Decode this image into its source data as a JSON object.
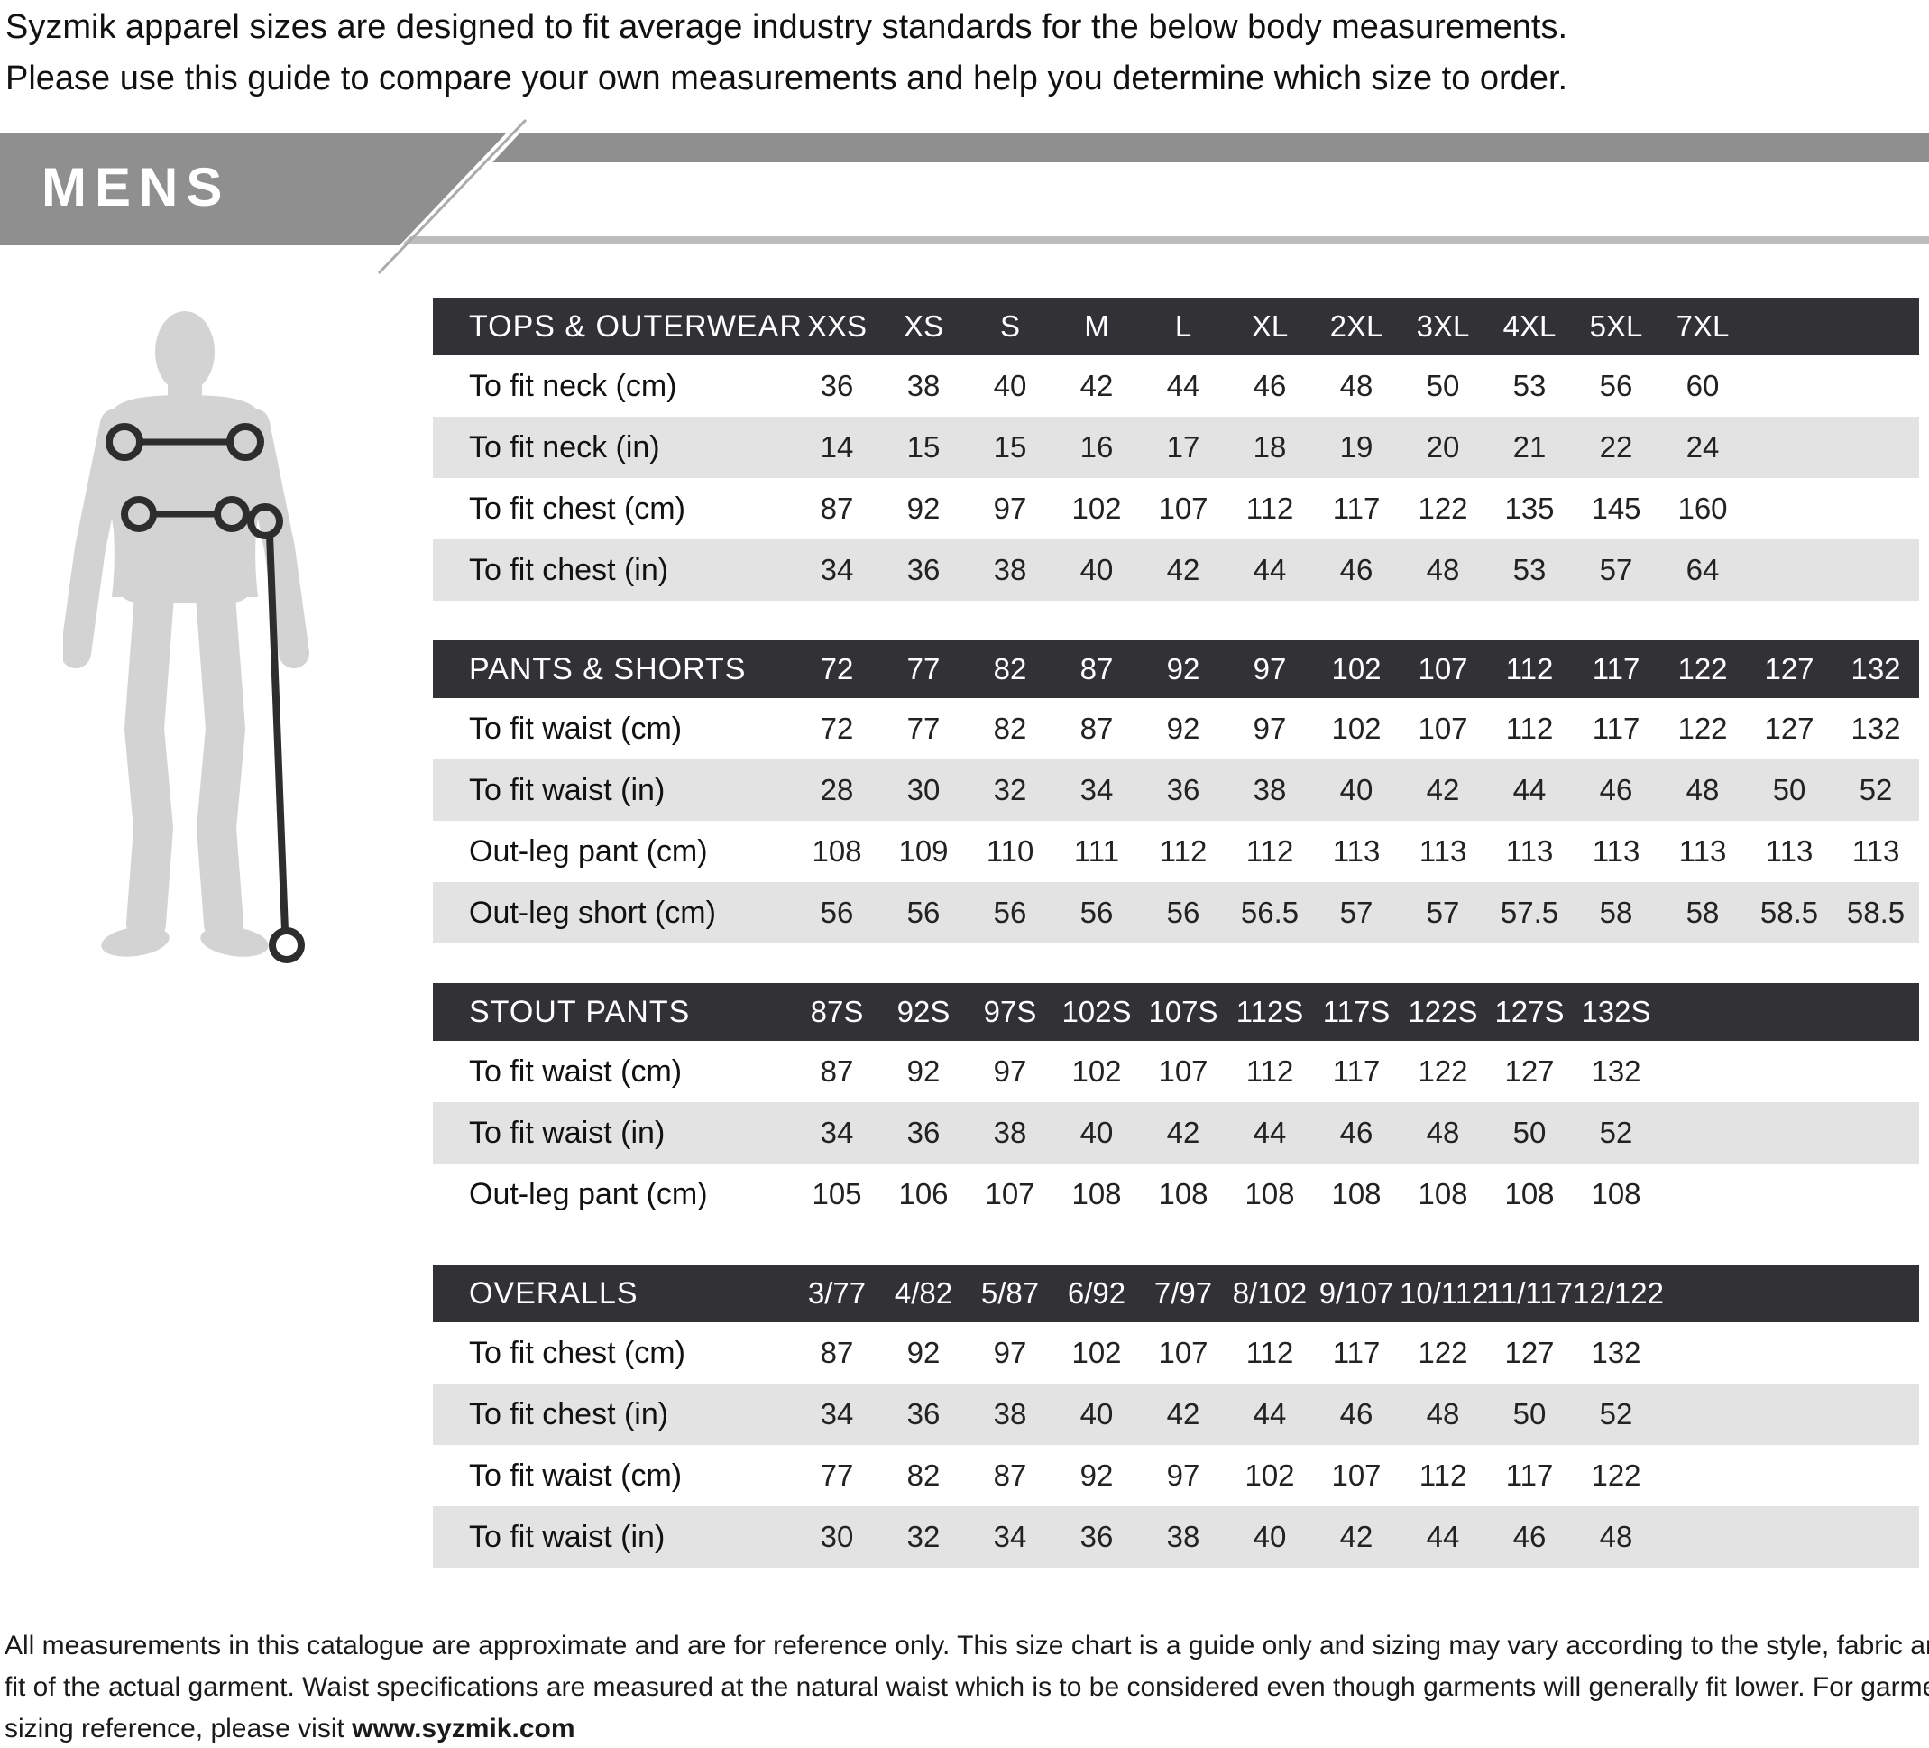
{
  "intro": {
    "line1": "Syzmik apparel sizes are designed to fit average industry standards for the below body measurements.",
    "line2": "Please use this guide to compare your own measurements and help you determine which size to order."
  },
  "banner": {
    "title": "MENS",
    "band_color": "#8f8f8f",
    "underline_color": "#bdbdbd"
  },
  "figure": {
    "description": "male body silhouette with chest, waist and out-leg measurement markers",
    "silhouette_color": "#d3d3d3",
    "marker_color": "#2d2d2d"
  },
  "tables": [
    {
      "header_label": "TOPS & OUTERWEAR",
      "sizes": [
        "XXS",
        "XS",
        "S",
        "M",
        "L",
        "XL",
        "2XL",
        "3XL",
        "4XL",
        "5XL",
        "7XL"
      ],
      "rows": [
        {
          "label": "To fit neck (cm)",
          "values": [
            "36",
            "38",
            "40",
            "42",
            "44",
            "46",
            "48",
            "50",
            "53",
            "56",
            "60"
          ]
        },
        {
          "label": "To fit neck (in)",
          "values": [
            "14",
            "15",
            "15",
            "16",
            "17",
            "18",
            "19",
            "20",
            "21",
            "22",
            "24"
          ]
        },
        {
          "label": "To fit chest (cm)",
          "values": [
            "87",
            "92",
            "97",
            "102",
            "107",
            "112",
            "117",
            "122",
            "135",
            "145",
            "160"
          ]
        },
        {
          "label": "To fit chest (in)",
          "values": [
            "34",
            "36",
            "38",
            "40",
            "42",
            "44",
            "46",
            "48",
            "53",
            "57",
            "64"
          ]
        }
      ]
    },
    {
      "header_label": "PANTS & SHORTS",
      "sizes": [
        "72",
        "77",
        "82",
        "87",
        "92",
        "97",
        "102",
        "107",
        "112",
        "117",
        "122",
        "127",
        "132"
      ],
      "rows": [
        {
          "label": "To fit waist (cm)",
          "values": [
            "72",
            "77",
            "82",
            "87",
            "92",
            "97",
            "102",
            "107",
            "112",
            "117",
            "122",
            "127",
            "132"
          ]
        },
        {
          "label": "To fit waist (in)",
          "values": [
            "28",
            "30",
            "32",
            "34",
            "36",
            "38",
            "40",
            "42",
            "44",
            "46",
            "48",
            "50",
            "52"
          ]
        },
        {
          "label": "Out-leg pant (cm)",
          "values": [
            "108",
            "109",
            "110",
            "111",
            "112",
            "112",
            "113",
            "113",
            "113",
            "113",
            "113",
            "113",
            "113"
          ]
        },
        {
          "label": "Out-leg short (cm)",
          "values": [
            "56",
            "56",
            "56",
            "56",
            "56",
            "56.5",
            "57",
            "57",
            "57.5",
            "58",
            "58",
            "58.5",
            "58.5"
          ]
        }
      ]
    },
    {
      "header_label": "STOUT PANTS",
      "sizes": [
        "87S",
        "92S",
        "97S",
        "102S",
        "107S",
        "112S",
        "117S",
        "122S",
        "127S",
        "132S"
      ],
      "rows": [
        {
          "label": "To fit waist (cm)",
          "values": [
            "87",
            "92",
            "97",
            "102",
            "107",
            "112",
            "117",
            "122",
            "127",
            "132"
          ]
        },
        {
          "label": "To fit waist (in)",
          "values": [
            "34",
            "36",
            "38",
            "40",
            "42",
            "44",
            "46",
            "48",
            "50",
            "52"
          ]
        },
        {
          "label": "Out-leg pant (cm)",
          "values": [
            "105",
            "106",
            "107",
            "108",
            "108",
            "108",
            "108",
            "108",
            "108",
            "108"
          ]
        }
      ]
    },
    {
      "header_label": "OVERALLS",
      "sizes": [
        "3/77",
        "4/82",
        "5/87",
        "6/92",
        "7/97",
        "8/102",
        "9/107",
        "10/112",
        "11/117",
        "12/122"
      ],
      "rows": [
        {
          "label": "To fit chest (cm)",
          "values": [
            "87",
            "92",
            "97",
            "102",
            "107",
            "112",
            "117",
            "122",
            "127",
            "132"
          ]
        },
        {
          "label": "To fit chest (in)",
          "values": [
            "34",
            "36",
            "38",
            "40",
            "42",
            "44",
            "46",
            "48",
            "50",
            "52"
          ]
        },
        {
          "label": "To fit waist (cm)",
          "values": [
            "77",
            "82",
            "87",
            "92",
            "97",
            "102",
            "107",
            "112",
            "117",
            "122"
          ]
        },
        {
          "label": "To fit waist (in)",
          "values": [
            "30",
            "32",
            "34",
            "36",
            "38",
            "40",
            "42",
            "44",
            "46",
            "48"
          ]
        }
      ]
    }
  ],
  "table_style": {
    "header_bar_color": "#323236",
    "alt_row_color": "#e3e3e3"
  },
  "footer": {
    "line1": "All measurements in this catalogue are approximate and are for reference only. This size chart is a guide only and sizing may vary according to the style, fabric and",
    "line2": "fit of the actual garment. Waist specifications are measured at the natural waist which is to be considered even though garments will generally fit lower. For garment",
    "line3_prefix": "sizing reference, please visit ",
    "line3_link": "www.syzmik.com"
  }
}
